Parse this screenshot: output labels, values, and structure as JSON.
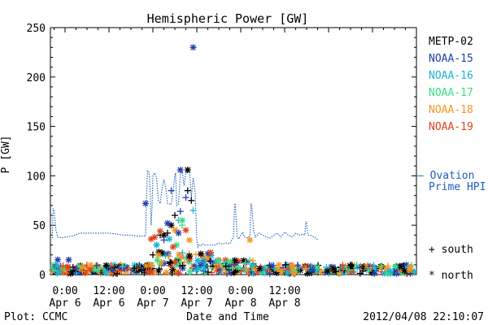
{
  "chart_data": {
    "type": "scatter",
    "title": "Hemispheric Power [GW]",
    "xlabel": "Date and Time",
    "ylabel": "P [GW]",
    "ylim": [
      0,
      250
    ],
    "yticks": [
      0,
      50,
      100,
      150,
      200,
      250
    ],
    "xlim": [
      -4,
      96
    ],
    "x_unit": "hours since 2012-04-06 00:00",
    "xticks": [
      {
        "x": 0,
        "top": "0:00",
        "bottom": "Apr 6"
      },
      {
        "x": 12,
        "top": "12:00",
        "bottom": "Apr 6"
      },
      {
        "x": 24,
        "top": "0:00",
        "bottom": "Apr 7"
      },
      {
        "x": 36,
        "top": "12:00",
        "bottom": "Apr 7"
      },
      {
        "x": 48,
        "top": "0:00",
        "bottom": "Apr 8"
      },
      {
        "x": 60,
        "top": "12:00",
        "bottom": "Apr 8"
      }
    ],
    "footer_left": "Plot: CCMC",
    "footer_right": "2012/04/08 22:10:07",
    "legend_satellites": [
      {
        "name": "METP-02",
        "color": "#000000"
      },
      {
        "name": "NOAA-15",
        "color": "#1e3fb0"
      },
      {
        "name": "NOAA-16",
        "color": "#18b5d6"
      },
      {
        "name": "NOAA-17",
        "color": "#3adf86"
      },
      {
        "name": "NOAA-18",
        "color": "#f5951e"
      },
      {
        "name": "NOAA-19",
        "color": "#e0401e"
      }
    ],
    "ovation": {
      "label_line1": "— Ovation",
      "label_line2": "Prime HPI",
      "color": "#1e5fbf",
      "x": [
        -3.5,
        -3.3,
        -3,
        -2.5,
        -2,
        -1.5,
        -1,
        0,
        2,
        4,
        6,
        8,
        10,
        12,
        14,
        16,
        18,
        20,
        21,
        22,
        22.2,
        22.5,
        23,
        23.3,
        23.5,
        23.8,
        24,
        24.5,
        25,
        25.5,
        26,
        26.5,
        27,
        27.5,
        28,
        29,
        30,
        30.2,
        30.5,
        31,
        31.5,
        32,
        32.5,
        33,
        34,
        34.5,
        35,
        35.5,
        36,
        36.3,
        36.5,
        37,
        37.5,
        38,
        38.5,
        39,
        39.5,
        40,
        41,
        42,
        43,
        44,
        45,
        46,
        46.3,
        46.5,
        47,
        47.5,
        48,
        48.5,
        49,
        50,
        50.5,
        50.8,
        51,
        51.5,
        52,
        53,
        54,
        55,
        56,
        57,
        58,
        59,
        60,
        61,
        62,
        63,
        64,
        65,
        65.5,
        65.8,
        66,
        66.3,
        66.5,
        67,
        68,
        68.5,
        69
      ],
      "y": [
        37,
        67,
        65,
        45,
        38,
        38,
        37,
        38,
        39,
        42,
        42,
        42,
        42,
        42,
        41,
        40,
        40,
        39,
        39,
        39,
        70,
        105,
        103,
        80,
        50,
        70,
        100,
        103,
        98,
        75,
        72,
        88,
        96,
        88,
        72,
        71,
        100,
        103,
        70,
        72,
        102,
        104,
        90,
        103,
        105,
        78,
        98,
        85,
        35,
        28,
        30,
        29,
        31,
        30,
        30,
        30,
        30,
        30,
        30,
        32,
        31,
        32,
        31,
        38,
        70,
        72,
        38,
        36,
        40,
        43,
        38,
        37,
        40,
        72,
        70,
        45,
        38,
        42,
        40,
        38,
        37,
        40,
        42,
        38,
        43,
        40,
        38,
        42,
        40,
        41,
        40,
        54,
        52,
        42,
        40,
        40,
        38,
        37,
        35
      ]
    },
    "south_points": {
      "x": [
        30,
        31.5,
        33,
        33.5,
        35,
        34.5,
        29,
        31,
        28,
        32,
        26,
        27,
        30.5,
        24,
        25
      ],
      "y": [
        60,
        64,
        78,
        85,
        65,
        75,
        85,
        55,
        42,
        50,
        40,
        35,
        45,
        20,
        30
      ],
      "colors": [
        "#000000",
        "#1e3fb0",
        "#1e3fb0",
        "#000000",
        "#18b5d6",
        "#000000",
        "#1e3fb0",
        "#18b5d6",
        "#000000",
        "#3adf86",
        "#000000",
        "#1e3fb0",
        "#f5951e",
        "#000000",
        "#1e3fb0"
      ]
    },
    "north_points": {
      "x": [
        35,
        22,
        33.5,
        31.5,
        29,
        30,
        27,
        28,
        26,
        25,
        24.5,
        32,
        33,
        34,
        30.5,
        31,
        29.5,
        28.5,
        26.5,
        25.5,
        23.5,
        50.5,
        -2,
        1
      ],
      "y": [
        230,
        72,
        106,
        106,
        50,
        45,
        40,
        52,
        44,
        30,
        38,
        55,
        45,
        35,
        30,
        42,
        28,
        36,
        22,
        20,
        36,
        35,
        15,
        15
      ],
      "colors": [
        "#1e3fb0",
        "#1e3fb0",
        "#000000",
        "#1e3fb0",
        "#000000",
        "#f5951e",
        "#000000",
        "#1e3fb0",
        "#e0401e",
        "#18b5d6",
        "#e0401e",
        "#3adf86",
        "#e0401e",
        "#f5951e",
        "#3adf86",
        "#1e3fb0",
        "#e0401e",
        "#18b5d6",
        "#000000",
        "#f5951e",
        "#e0401e",
        "#f5951e",
        "#1e3fb0",
        "#1e3fb0"
      ]
    },
    "south_legend": "+ south",
    "north_legend": "* north"
  }
}
